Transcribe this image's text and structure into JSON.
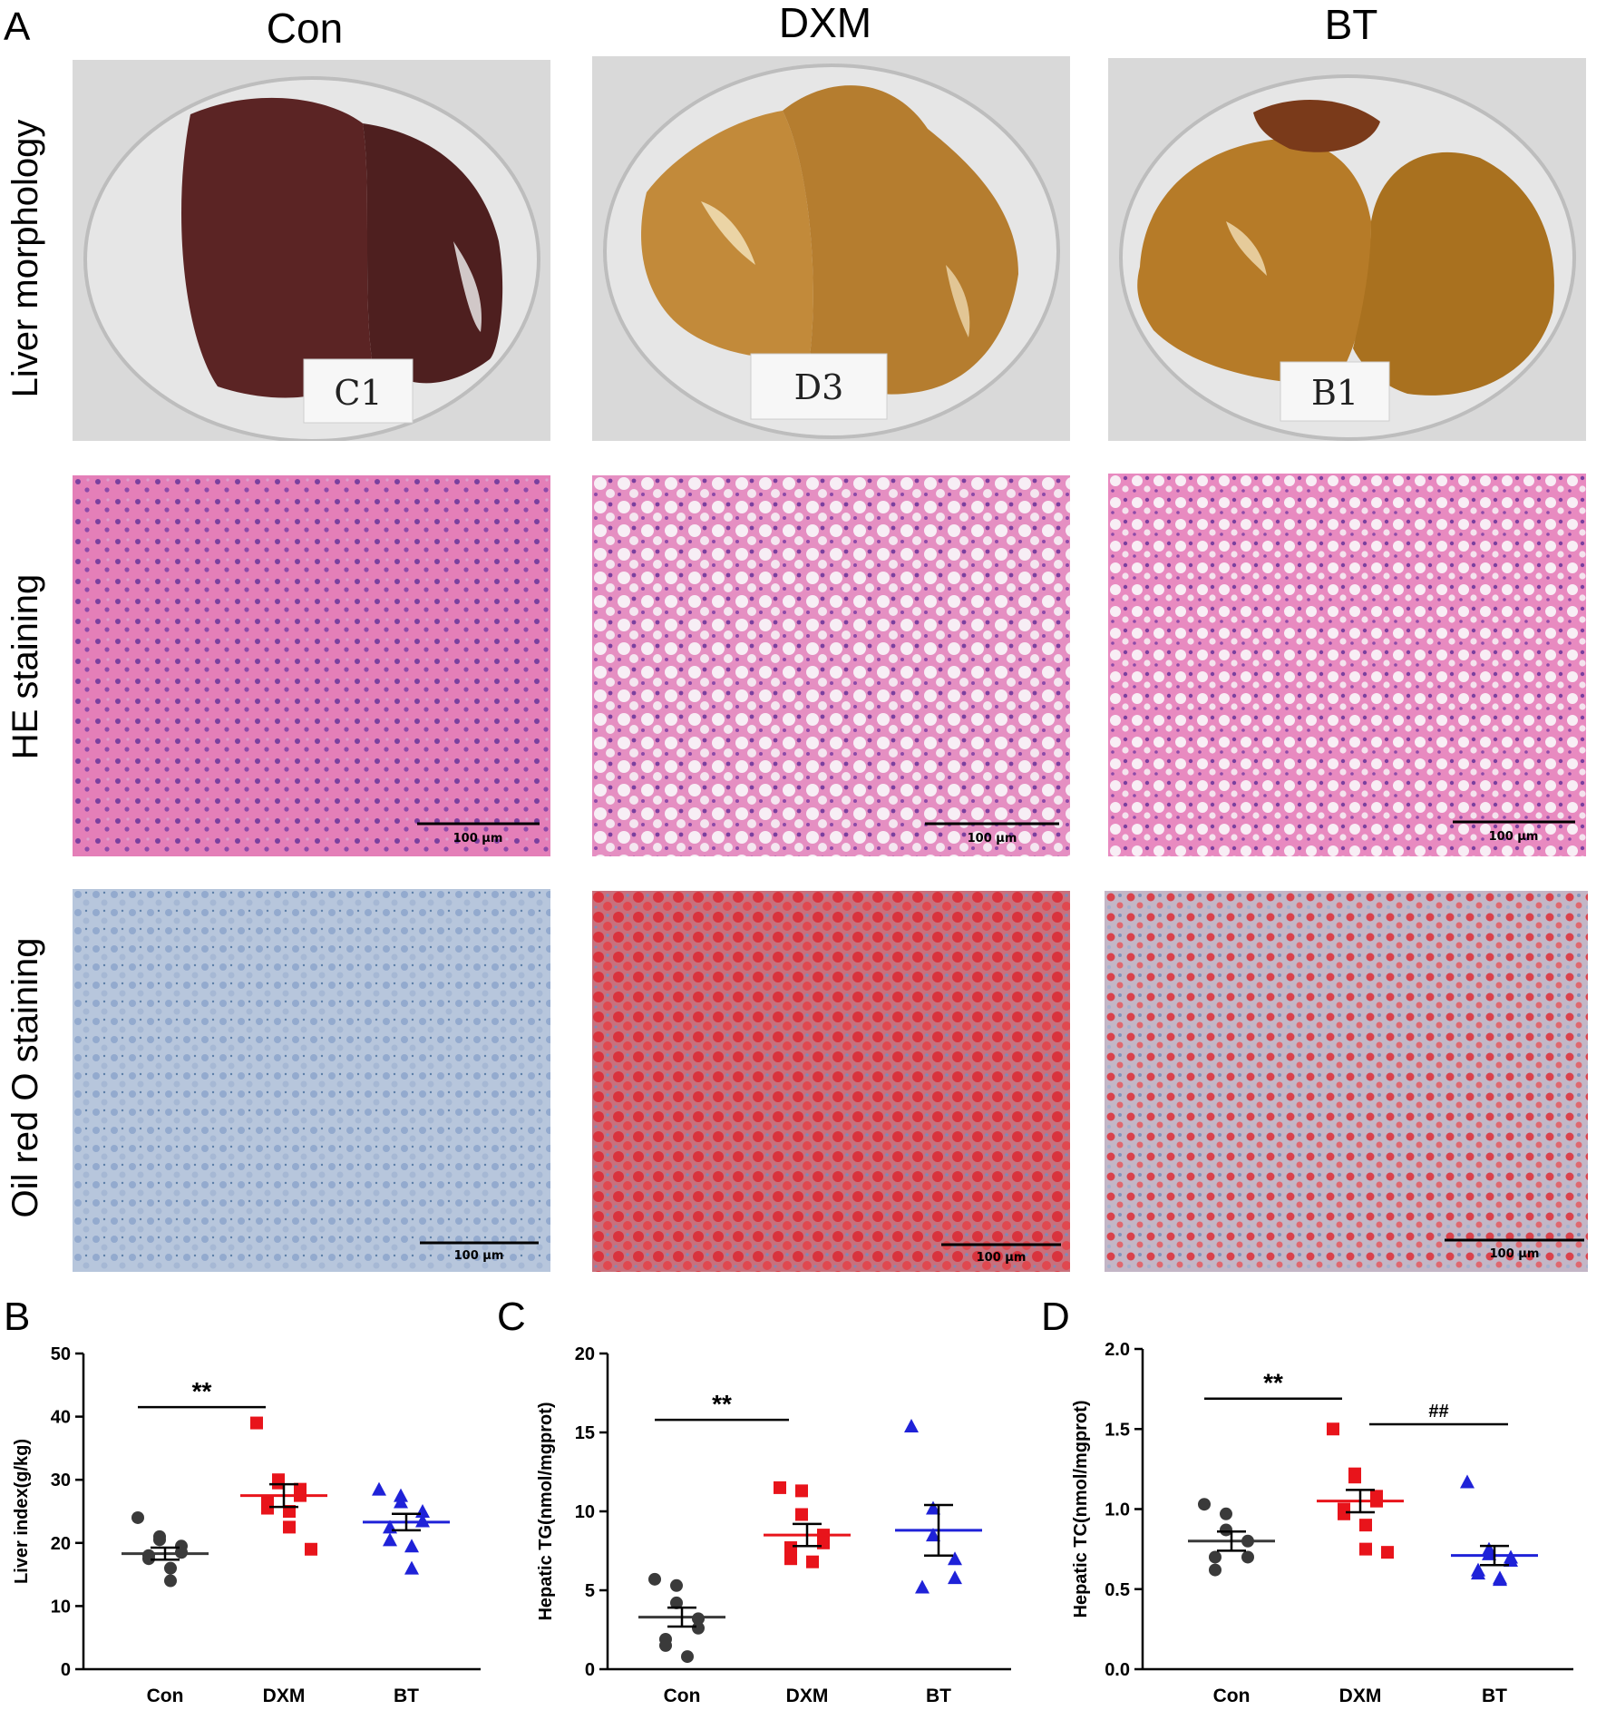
{
  "panels": {
    "A": "A",
    "B": "B",
    "C": "C",
    "D": "D"
  },
  "columns": [
    "Con",
    "DXM",
    "BT"
  ],
  "rows": [
    "Liver morphology",
    "HE staining",
    "Oil red O staining"
  ],
  "dish_labels": [
    "C1",
    "D3",
    "B1"
  ],
  "scale_bar": "100 μm",
  "colors": {
    "con": "#3a3a3a",
    "dxm": "#e8141b",
    "bt": "#1f22d8",
    "he_background": "#e48fc0",
    "oro_con": "#a9bcd6",
    "oro_dxm": "#d8484f",
    "oro_bt": "#c77f8c"
  },
  "chart_data": [
    {
      "type": "scatter",
      "panel": "B",
      "ylabel": "Liver index(g/kg)",
      "ylim": [
        0,
        50
      ],
      "yticks": [
        "0",
        "10",
        "20",
        "30",
        "40",
        "50"
      ],
      "categories": [
        "Con",
        "DXM",
        "BT"
      ],
      "series": [
        {
          "values": [
            24.0,
            21.0,
            20.5,
            19.5,
            18.5,
            18.0,
            17.5,
            16.0,
            14.0
          ],
          "mean": 18.3,
          "sem": 0.95
        },
        {
          "values": [
            39.0,
            30.0,
            29.5,
            28.5,
            27.5,
            26.5,
            25.5,
            25.0,
            22.5,
            19.0
          ],
          "mean": 27.5,
          "sem": 1.8
        },
        {
          "values": [
            28.5,
            27.5,
            26.5,
            25.0,
            23.5,
            22.5,
            20.5,
            19.5,
            16.0
          ],
          "mean": 23.3,
          "sem": 1.3
        }
      ],
      "significance": [
        {
          "from": 0,
          "to": 1,
          "label": "**",
          "y": 41.5
        }
      ],
      "markers": [
        "circle",
        "square",
        "triangle"
      ]
    },
    {
      "type": "scatter",
      "panel": "C",
      "ylabel": "Hepatic TG(nmol/mgprot)",
      "ylim": [
        0,
        20
      ],
      "yticks": [
        "0",
        "5",
        "10",
        "15",
        "20"
      ],
      "categories": [
        "Con",
        "DXM",
        "BT"
      ],
      "series": [
        {
          "values": [
            5.7,
            5.3,
            4.2,
            3.2,
            2.6,
            1.9,
            1.5,
            0.8
          ],
          "mean": 3.3,
          "sem": 0.6
        },
        {
          "values": [
            11.5,
            11.3,
            9.8,
            8.5,
            8.0,
            7.7,
            7.0,
            6.8
          ],
          "mean": 8.5,
          "sem": 0.7
        },
        {
          "values": [
            15.4,
            10.2,
            8.5,
            7.0,
            5.8,
            5.2
          ],
          "mean": 8.8,
          "sem": 1.6
        }
      ],
      "significance": [
        {
          "from": 0,
          "to": 1,
          "label": "**",
          "y": 15.8
        }
      ],
      "markers": [
        "circle",
        "square",
        "triangle"
      ]
    },
    {
      "type": "scatter",
      "panel": "D",
      "ylabel": "Hepatic TC(nmol/mgprot)",
      "ylim": [
        0,
        2
      ],
      "yticks": [
        "0.0",
        "0.5",
        "1.0",
        "1.5",
        "2.0"
      ],
      "categories": [
        "Con",
        "DXM",
        "BT"
      ],
      "series": [
        {
          "values": [
            1.03,
            0.97,
            0.87,
            0.8,
            0.7,
            0.7,
            0.62
          ],
          "mean": 0.8,
          "sem": 0.06
        },
        {
          "values": [
            1.5,
            1.22,
            1.2,
            1.08,
            1.05,
            1.0,
            0.97,
            0.9,
            0.75,
            0.73
          ],
          "mean": 1.05,
          "sem": 0.07
        },
        {
          "values": [
            1.17,
            0.75,
            0.72,
            0.7,
            0.68,
            0.62,
            0.6,
            0.57,
            0.56
          ],
          "mean": 0.71,
          "sem": 0.06
        }
      ],
      "significance": [
        {
          "from": 0,
          "to": 1,
          "label": "**",
          "y": 1.69
        },
        {
          "from": 1,
          "to": 2,
          "label": "##",
          "y": 1.53
        }
      ],
      "markers": [
        "circle",
        "square",
        "triangle"
      ]
    }
  ]
}
